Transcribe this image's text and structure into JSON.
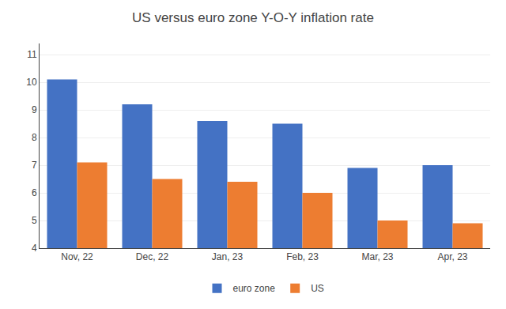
{
  "chart_data": {
    "type": "bar",
    "title": "US versus euro zone Y-O-Y inflation rate",
    "categories": [
      "Nov, 22",
      "Dec, 22",
      "Jan, 23",
      "Feb, 23",
      "Mar, 23",
      "Apr, 23"
    ],
    "series": [
      {
        "name": "euro zone",
        "color": "#4472C4",
        "values": [
          10.1,
          9.2,
          8.6,
          8.5,
          6.9,
          7.0
        ]
      },
      {
        "name": "US",
        "color": "#ED7D31",
        "values": [
          7.1,
          6.5,
          6.4,
          6.0,
          5.0,
          4.9
        ]
      }
    ],
    "ylim": [
      4,
      11.4
    ],
    "yticks": [
      4,
      5,
      6,
      7,
      8,
      9,
      10,
      11
    ],
    "grid": true,
    "legend": "bottom"
  }
}
